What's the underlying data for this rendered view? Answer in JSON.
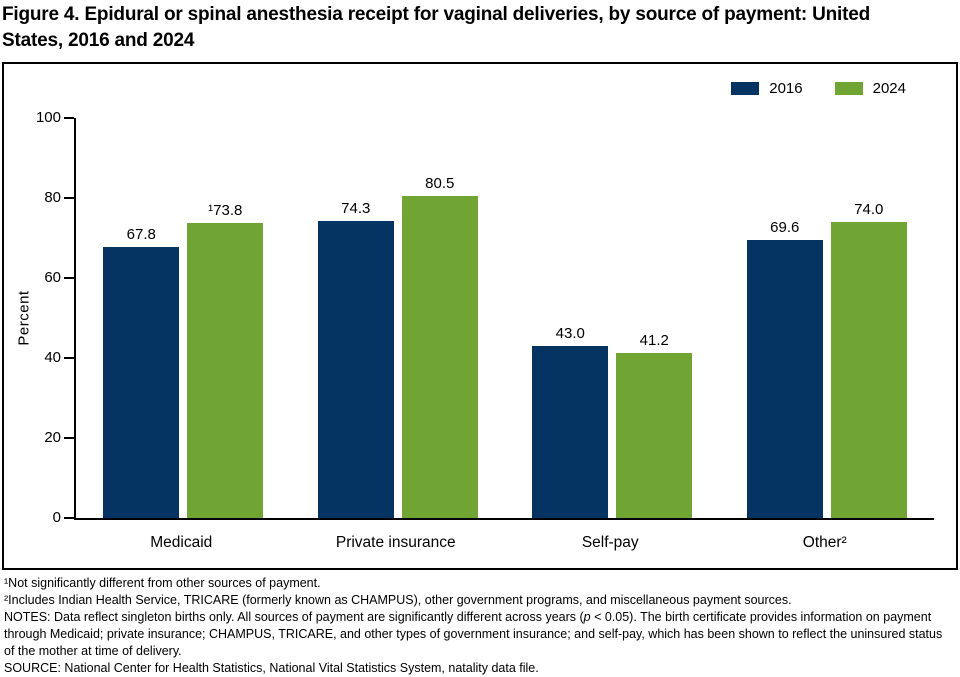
{
  "title": {
    "line1": "Figure 4. Epidural or spinal anesthesia receipt for vaginal deliveries, by source of payment: United",
    "line2": "States, 2016 and 2024"
  },
  "chart_data": {
    "type": "bar",
    "title": "Figure 4. Epidural or spinal anesthesia receipt for vaginal deliveries, by source of payment: United States, 2016 and 2024",
    "xlabel": "",
    "ylabel": "Percent",
    "ylim": [
      0,
      100
    ],
    "yticks": [
      0,
      20,
      40,
      60,
      80,
      100
    ],
    "grid": false,
    "legend_position": "top-right",
    "categories": [
      "Medicaid",
      "Private insurance",
      "Self-pay",
      "Other²"
    ],
    "series": [
      {
        "name": "2016",
        "color": "#063462",
        "values": [
          67.8,
          74.3,
          43.0,
          69.6
        ],
        "labels": [
          "67.8",
          "74.3",
          "43.0",
          "69.6"
        ]
      },
      {
        "name": "2024",
        "color": "#70a433",
        "values": [
          73.8,
          80.5,
          41.2,
          74.0
        ],
        "labels": [
          "¹73.8",
          "80.5",
          "41.2",
          "74.0"
        ]
      }
    ]
  },
  "footnotes": {
    "fn1": "¹Not significantly different from other sources of payment.",
    "fn2": "²Includes Indian Health Service, TRICARE (formerly known as CHAMPUS), other government programs, and miscellaneous payment sources.",
    "notes": {
      "pre": "NOTES: Data reflect singleton births only. All sources of payment are significantly different across years (",
      "p": "p",
      "post": " < 0.05). The birth certificate provides information on payment through Medicaid; private insurance; CHAMPUS, TRICARE, and other types of government insurance; and self-pay, which has been shown to reflect the uninsured status of the mother at time of delivery."
    },
    "source": "SOURCE: National Center for Health Statistics, National Vital Statistics System, natality data file."
  }
}
